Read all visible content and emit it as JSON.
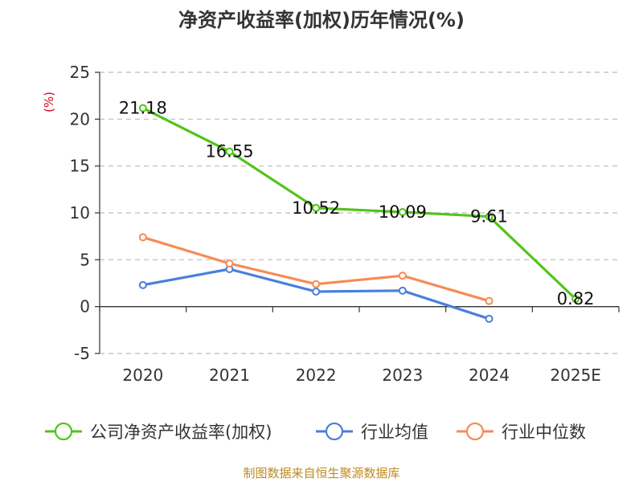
{
  "chart_data": {
    "type": "line",
    "title": "净资产收益率(加权)历年情况(%)",
    "ylabel": "(%)",
    "xlabel": "",
    "categories": [
      "2020",
      "2021",
      "2022",
      "2023",
      "2024",
      "2025E"
    ],
    "ylim": [
      -5,
      25
    ],
    "yticks": [
      -5,
      0,
      5,
      10,
      15,
      20,
      25
    ],
    "grid": "horizontal dashed",
    "legend_position": "bottom",
    "series": [
      {
        "name": "公司净资产收益率(加权)",
        "color": "#52c41a",
        "values": [
          21.18,
          16.55,
          10.52,
          10.09,
          9.61,
          0.82
        ],
        "labels": [
          "21.18",
          "16.55",
          "10.52",
          "10.09",
          "9.61",
          "0.82"
        ]
      },
      {
        "name": "行业均值",
        "color": "#4a7fdc",
        "values": [
          2.3,
          4.0,
          1.6,
          1.7,
          -1.3,
          null
        ]
      },
      {
        "name": "行业中位数",
        "color": "#f68b54",
        "values": [
          7.4,
          4.6,
          2.4,
          3.3,
          0.6,
          null
        ]
      }
    ],
    "source": "制图数据来自恒生聚源数据库"
  }
}
